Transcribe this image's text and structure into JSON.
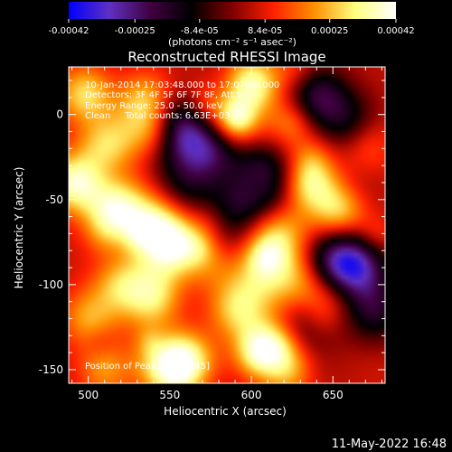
{
  "colorbar": {
    "ticks": [
      "-0.00042",
      "-0.00025",
      "-8.4e-05",
      "8.4e-05",
      "0.00025",
      "0.00042"
    ],
    "tick_values": [
      -0.00042,
      -0.00025,
      -8.4e-05,
      8.4e-05,
      0.00025,
      0.00042
    ],
    "range": [
      -0.00042,
      0.00042
    ],
    "unit_label": "(photons cm⁻² s⁻¹ asec⁻²)",
    "colors": [
      "#0000ff",
      "#6030c0",
      "#400040",
      "#000000",
      "#800000",
      "#ff2000",
      "#ff9000",
      "#ffff80",
      "#ffffff"
    ]
  },
  "chart_data": {
    "type": "heatmap",
    "title": "Reconstructed RHESSI Image",
    "xlabel": "Heliocentric X (arcsec)",
    "ylabel": "Heliocentric Y (arcsec)",
    "xlim": [
      488,
      682
    ],
    "ylim": [
      -158,
      28
    ],
    "xticks": [
      500,
      550,
      600,
      650
    ],
    "yticks": [
      0,
      -50,
      -100,
      -150
    ],
    "annotations": [
      "10-Jan-2014 17:03:48.000 to 17:07:20.000",
      "Detectors: 3F 4F 5F 6F 7F 8F, Att 0",
      "Energy Range: 25.0 - 50.0 keV",
      "Clean     Total counts: 6.63E+03"
    ],
    "peak_label": "Position of Peak: [563,-145]",
    "hot_spots": [
      {
        "x": 492,
        "y": -40,
        "v": 1.0
      },
      {
        "x": 498,
        "y": 12,
        "v": 0.75
      },
      {
        "x": 510,
        "y": -18,
        "v": 0.6
      },
      {
        "x": 520,
        "y": -55,
        "v": 0.5
      },
      {
        "x": 535,
        "y": 8,
        "v": 0.7
      },
      {
        "x": 560,
        "y": -78,
        "v": 0.85
      },
      {
        "x": 545,
        "y": -72,
        "v": 0.6
      },
      {
        "x": 600,
        "y": 18,
        "v": 0.95
      },
      {
        "x": 590,
        "y": -5,
        "v": 0.55
      },
      {
        "x": 635,
        "y": -40,
        "v": 0.85
      },
      {
        "x": 655,
        "y": -55,
        "v": 0.75
      },
      {
        "x": 668,
        "y": -18,
        "v": 0.6
      },
      {
        "x": 615,
        "y": -70,
        "v": 0.45
      },
      {
        "x": 520,
        "y": -100,
        "v": 0.55
      },
      {
        "x": 500,
        "y": -120,
        "v": 0.5
      },
      {
        "x": 540,
        "y": -110,
        "v": 0.5
      },
      {
        "x": 608,
        "y": -137,
        "v": 0.95
      },
      {
        "x": 590,
        "y": -115,
        "v": 0.6
      },
      {
        "x": 560,
        "y": -145,
        "v": 0.95
      },
      {
        "x": 545,
        "y": -148,
        "v": 0.7
      },
      {
        "x": 625,
        "y": -150,
        "v": 0.6
      },
      {
        "x": 645,
        "y": -110,
        "v": 0.45
      },
      {
        "x": 630,
        "y": -95,
        "v": 0.4
      },
      {
        "x": 510,
        "y": -150,
        "v": 0.5
      }
    ],
    "cold_spots": [
      {
        "x": 555,
        "y": -10,
        "v": -1.0
      },
      {
        "x": 575,
        "y": -20,
        "v": -0.85
      },
      {
        "x": 640,
        "y": 10,
        "v": -0.9
      },
      {
        "x": 660,
        "y": -5,
        "v": -0.6
      },
      {
        "x": 665,
        "y": -90,
        "v": -1.0
      },
      {
        "x": 650,
        "y": -85,
        "v": -0.9
      },
      {
        "x": 675,
        "y": -115,
        "v": -0.7
      },
      {
        "x": 610,
        "y": -45,
        "v": -0.6
      },
      {
        "x": 590,
        "y": -55,
        "v": -0.5
      },
      {
        "x": 635,
        "y": -125,
        "v": -0.5
      },
      {
        "x": 560,
        "y": -40,
        "v": -0.5
      }
    ]
  },
  "footer": {
    "date": "11-May-2022 16:48"
  }
}
